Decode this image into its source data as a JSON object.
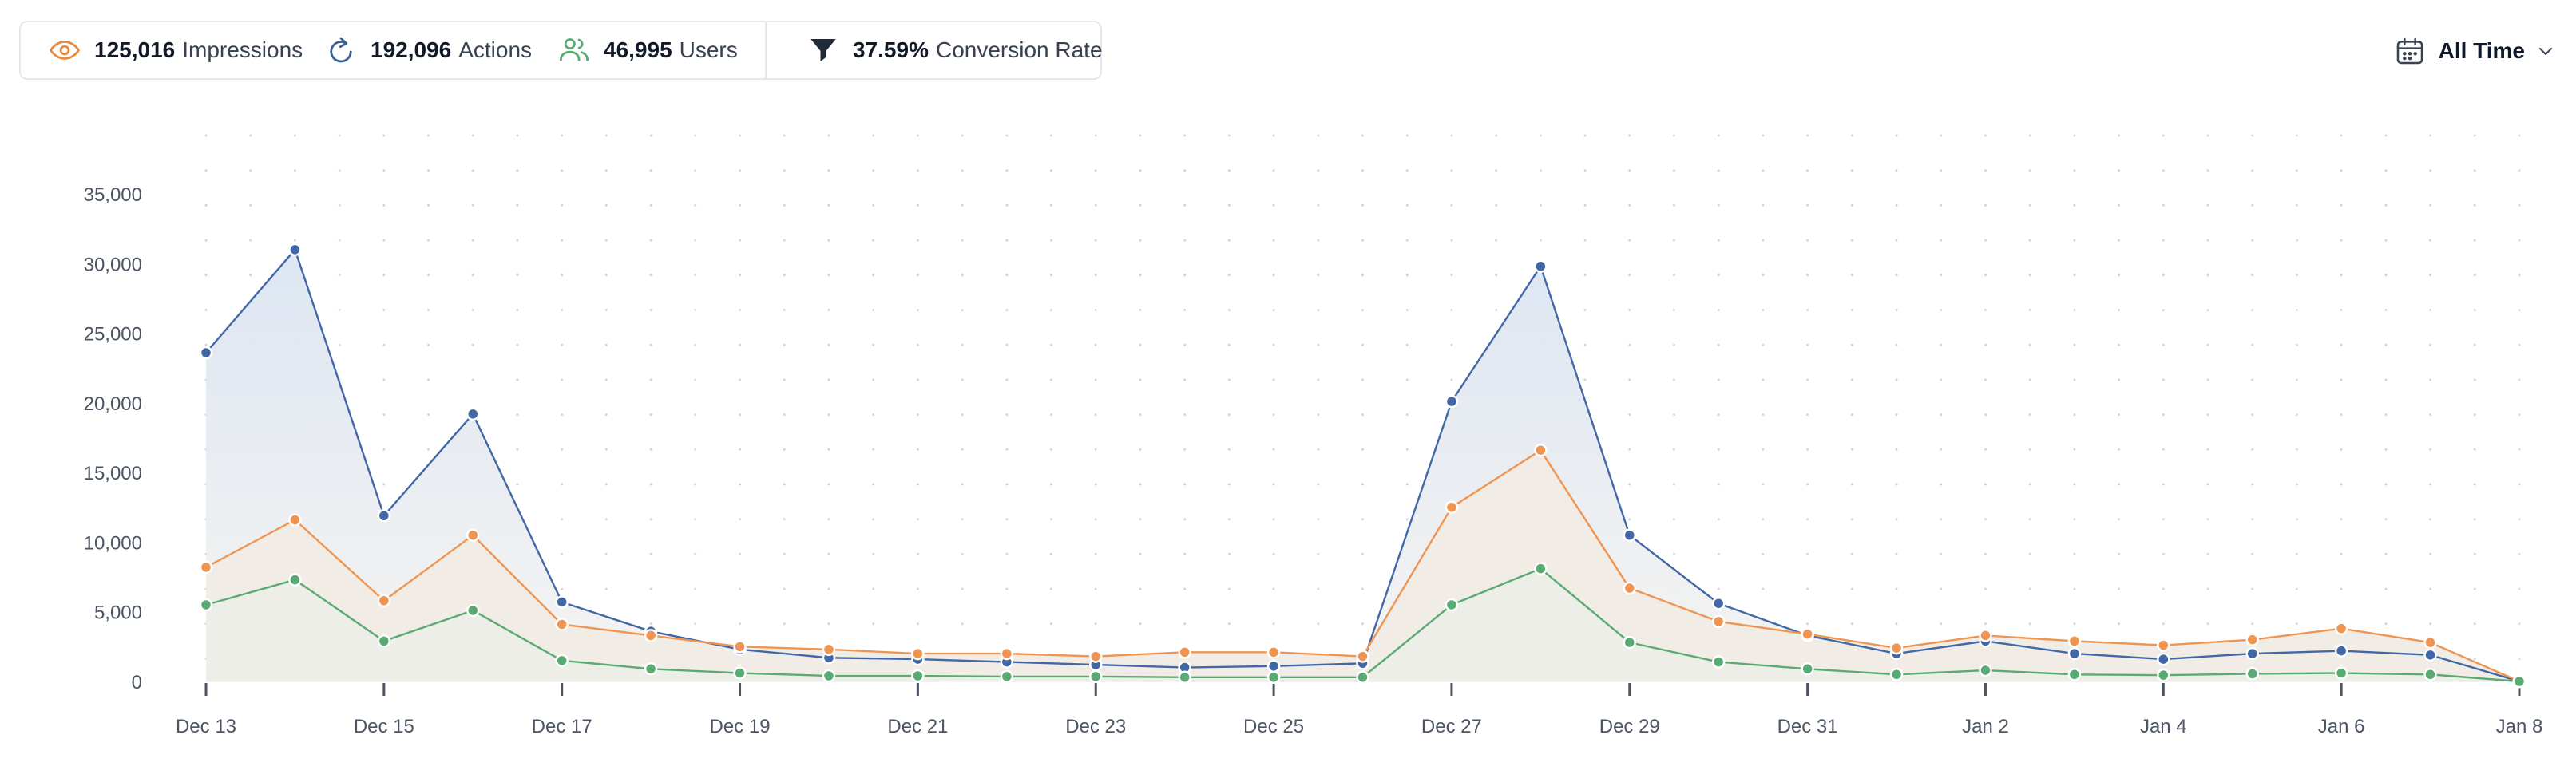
{
  "stats": [
    {
      "value": "125,016",
      "label": "Impressions",
      "icon": "eye-icon",
      "color": "#e8893b"
    },
    {
      "value": "192,096",
      "label": "Actions",
      "icon": "refresh-icon",
      "color": "#3b5f98"
    },
    {
      "value": "46,995",
      "label": "Users",
      "icon": "users-icon",
      "color": "#5aaa73"
    },
    {
      "value": "37.59%",
      "label": "Conversion Rate",
      "icon": "funnel-icon",
      "color": "#1f2937"
    }
  ],
  "date_range": {
    "label": "All Time",
    "icon": "calendar-icon"
  },
  "colors": {
    "actions": "#4267a6",
    "impressions": "#ef9551",
    "users": "#5aaa73",
    "actions_fill": "#dde6f3",
    "impressions_fill": "#f1ede6",
    "users_fill": "#eceee9",
    "grid_dot": "#d1d5db",
    "axis_text": "#4b5563"
  },
  "chart_data": {
    "type": "area",
    "title": "",
    "xlabel": "",
    "ylabel": "",
    "ylim": [
      0,
      35000
    ],
    "yticks": [
      0,
      5000,
      10000,
      15000,
      20000,
      25000,
      30000,
      35000
    ],
    "ytick_labels": [
      "0",
      "5,000",
      "10,000",
      "15,000",
      "20,000",
      "25,000",
      "30,000",
      "35,000"
    ],
    "x": [
      "Dec 13",
      "Dec 14",
      "Dec 15",
      "Dec 16",
      "Dec 17",
      "Dec 18",
      "Dec 19",
      "Dec 20",
      "Dec 21",
      "Dec 22",
      "Dec 23",
      "Dec 24",
      "Dec 25",
      "Dec 26",
      "Dec 27",
      "Dec 28",
      "Dec 29",
      "Dec 30",
      "Dec 31",
      "Jan 1",
      "Jan 2",
      "Jan 3",
      "Jan 4",
      "Jan 5",
      "Jan 6",
      "Jan 7",
      "Jan 8"
    ],
    "xtick_labels": [
      "Dec 13",
      "",
      "Dec 15",
      "",
      "Dec 17",
      "",
      "Dec 19",
      "",
      "Dec 21",
      "",
      "Dec 23",
      "",
      "Dec 25",
      "",
      "Dec 27",
      "",
      "Dec 29",
      "",
      "Dec 31",
      "",
      "Jan 2",
      "",
      "Jan 4",
      "",
      "Jan 6",
      "",
      "Jan 8"
    ],
    "series": [
      {
        "name": "Actions",
        "values": [
          23600,
          31000,
          11900,
          19200,
          5700,
          3600,
          2300,
          1700,
          1600,
          1400,
          1200,
          1000,
          1100,
          1300,
          20100,
          29800,
          10500,
          5600,
          3300,
          2000,
          2900,
          2000,
          1600,
          2000,
          2200,
          1900,
          0
        ]
      },
      {
        "name": "Impressions",
        "values": [
          8200,
          11600,
          5800,
          10500,
          4100,
          3300,
          2500,
          2300,
          2000,
          2000,
          1800,
          2100,
          2100,
          1800,
          12500,
          16600,
          6700,
          4300,
          3400,
          2400,
          3300,
          2900,
          2600,
          3000,
          3800,
          2800,
          0
        ]
      },
      {
        "name": "Users",
        "values": [
          5500,
          7300,
          2900,
          5100,
          1500,
          900,
          600,
          400,
          400,
          350,
          350,
          300,
          300,
          300,
          5500,
          8100,
          2800,
          1400,
          900,
          500,
          800,
          500,
          450,
          550,
          600,
          500,
          0
        ]
      }
    ]
  }
}
